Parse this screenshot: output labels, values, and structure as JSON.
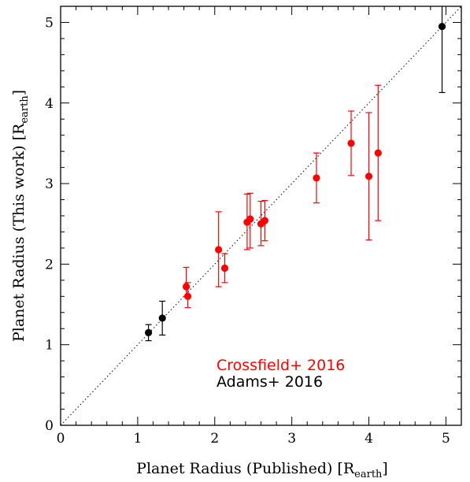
{
  "chart_data": {
    "type": "scatter",
    "xlabel_main": "Planet Radius (Published) [R",
    "xlabel_sub": "earth",
    "xlabel_end": "]",
    "ylabel_main": "Planet Radius (This work) [R",
    "ylabel_sub": "earth",
    "ylabel_end": "]",
    "xlim": [
      0,
      5.2
    ],
    "ylim": [
      0,
      5.2
    ],
    "x_ticks": [
      0,
      1,
      2,
      3,
      4,
      5
    ],
    "y_ticks": [
      0,
      1,
      2,
      3,
      4,
      5
    ],
    "x_tick_labels": [
      "0",
      "1",
      "2",
      "3",
      "4",
      "5"
    ],
    "y_tick_labels": [
      "0",
      "1",
      "2",
      "3",
      "4",
      "5"
    ],
    "grid": false,
    "one_to_one_line": true,
    "legend_position": "lower-right",
    "series": [
      {
        "name": "Crossfield+ 2016",
        "color": "#ff0000",
        "points": [
          {
            "x": 1.63,
            "y": 1.72,
            "err_lo": 0.12,
            "err_hi": 0.24
          },
          {
            "x": 1.65,
            "y": 1.6,
            "err_lo": 0.14,
            "err_hi": 0.17
          },
          {
            "x": 2.05,
            "y": 2.18,
            "err_lo": 0.46,
            "err_hi": 0.47
          },
          {
            "x": 2.13,
            "y": 1.95,
            "err_lo": 0.18,
            "err_hi": 0.18
          },
          {
            "x": 2.42,
            "y": 2.52,
            "err_lo": 0.34,
            "err_hi": 0.35
          },
          {
            "x": 2.46,
            "y": 2.56,
            "err_lo": 0.36,
            "err_hi": 0.32
          },
          {
            "x": 2.6,
            "y": 2.5,
            "err_lo": 0.27,
            "err_hi": 0.28
          },
          {
            "x": 2.65,
            "y": 2.54,
            "err_lo": 0.25,
            "err_hi": 0.25
          },
          {
            "x": 3.32,
            "y": 3.07,
            "err_lo": 0.31,
            "err_hi": 0.31
          },
          {
            "x": 3.77,
            "y": 3.5,
            "err_lo": 0.4,
            "err_hi": 0.4
          },
          {
            "x": 4.0,
            "y": 3.09,
            "err_lo": 0.79,
            "err_hi": 0.79
          },
          {
            "x": 4.12,
            "y": 3.38,
            "err_lo": 0.84,
            "err_hi": 0.84
          }
        ]
      },
      {
        "name": "Adams+ 2016",
        "color": "#000000",
        "points": [
          {
            "x": 1.14,
            "y": 1.15,
            "err_lo": 0.1,
            "err_hi": 0.1
          },
          {
            "x": 1.32,
            "y": 1.33,
            "err_lo": 0.21,
            "err_hi": 0.21
          },
          {
            "x": 4.95,
            "y": 4.95,
            "err_lo": 0.82,
            "err_hi": 0.3
          }
        ]
      }
    ]
  }
}
